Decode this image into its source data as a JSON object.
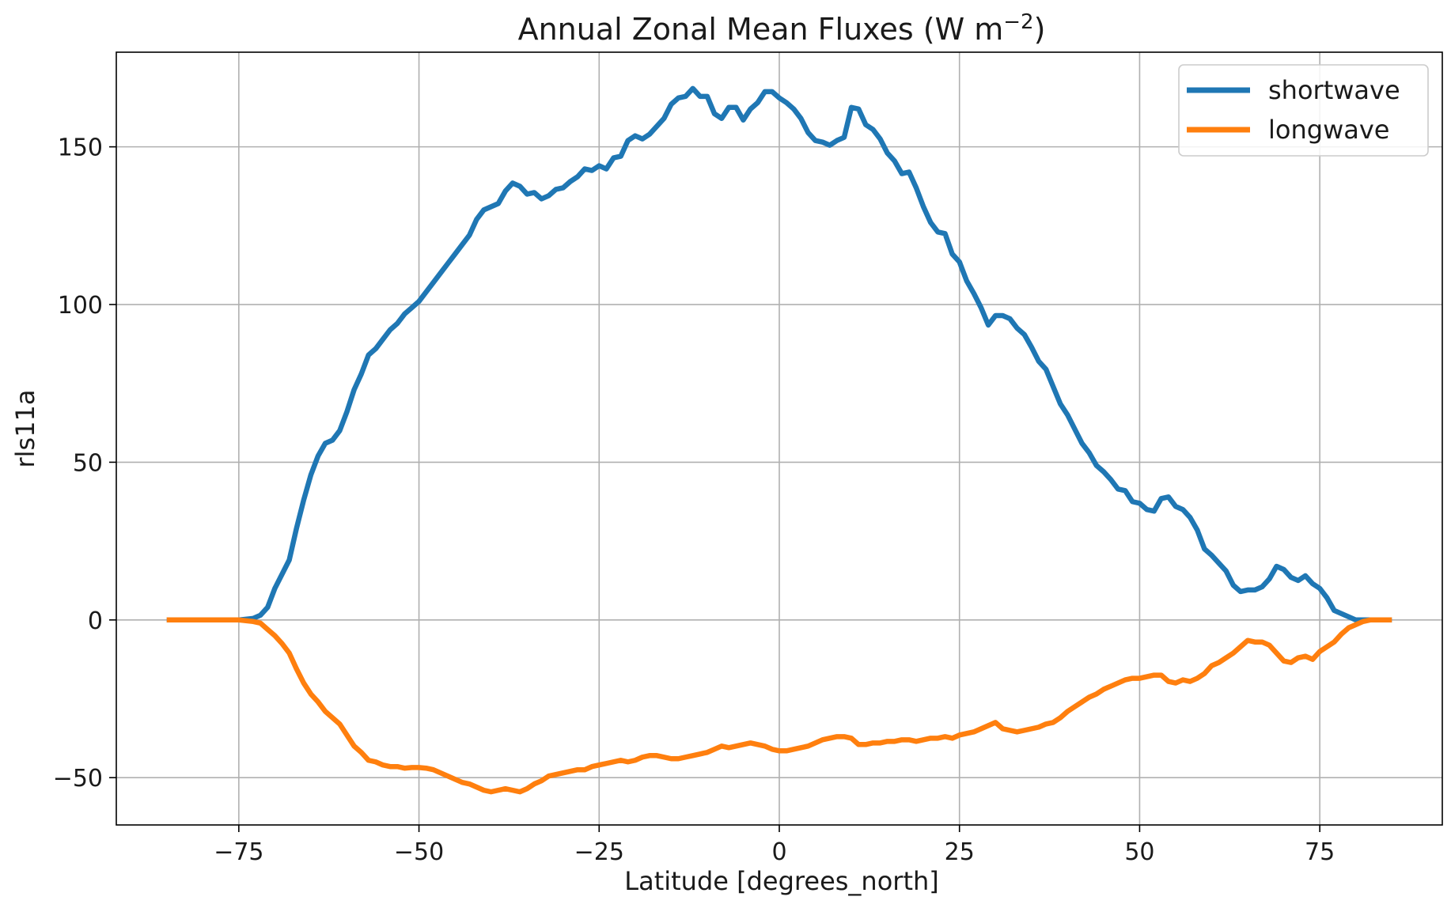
{
  "chart_data": {
    "type": "line",
    "title": "Annual Zonal Mean Fluxes (W m",
    "title_superscript": "−2",
    "title_close": ")",
    "xlabel": "Latitude [degrees_north]",
    "ylabel": "rls11a",
    "xlim": [
      -92,
      92
    ],
    "ylim": [
      -65,
      180
    ],
    "grid": true,
    "legend_position": "top-right",
    "x_ticks": [
      -75,
      -50,
      -25,
      0,
      25,
      50,
      75
    ],
    "x_tick_labels": [
      "−75",
      "−50",
      "−25",
      "0",
      "25",
      "50",
      "75"
    ],
    "y_ticks": [
      -50,
      0,
      50,
      100,
      150
    ],
    "y_tick_labels": [
      "−50",
      "0",
      "50",
      "100",
      "150"
    ],
    "series": [
      {
        "name": "shortwave",
        "color": "#1f77b4",
        "points": [
          [
            -85,
            0
          ],
          [
            -80,
            0
          ],
          [
            -75,
            0
          ],
          [
            -73,
            0.5
          ],
          [
            -72,
            1.5
          ],
          [
            -71,
            4
          ],
          [
            -70,
            10
          ],
          [
            -68,
            19
          ],
          [
            -67,
            29
          ],
          [
            -66,
            38
          ],
          [
            -65,
            46
          ],
          [
            -64,
            52
          ],
          [
            -63,
            56
          ],
          [
            -62,
            57
          ],
          [
            -61,
            60
          ],
          [
            -60,
            66
          ],
          [
            -59,
            73
          ],
          [
            -58,
            78
          ],
          [
            -57,
            84
          ],
          [
            -56,
            86
          ],
          [
            -55,
            89
          ],
          [
            -54,
            92
          ],
          [
            -53,
            94
          ],
          [
            -52,
            97
          ],
          [
            -51,
            99
          ],
          [
            -50,
            101
          ],
          [
            -49,
            104
          ],
          [
            -48,
            107
          ],
          [
            -47,
            110
          ],
          [
            -46,
            113
          ],
          [
            -45,
            116
          ],
          [
            -44,
            119
          ],
          [
            -43,
            122
          ],
          [
            -42,
            127
          ],
          [
            -41,
            130
          ],
          [
            -40,
            131
          ],
          [
            -39,
            132
          ],
          [
            -38,
            136
          ],
          [
            -37,
            138.5
          ],
          [
            -36,
            137.5
          ],
          [
            -35,
            135
          ],
          [
            -34,
            135.5
          ],
          [
            -33,
            133.5
          ],
          [
            -32,
            134.5
          ],
          [
            -31,
            136.5
          ],
          [
            -30,
            137
          ],
          [
            -29,
            139
          ],
          [
            -28,
            140.5
          ],
          [
            -27,
            143
          ],
          [
            -26,
            142.5
          ],
          [
            -25,
            144
          ],
          [
            -24,
            143
          ],
          [
            -23,
            146.5
          ],
          [
            -22,
            147
          ],
          [
            -21,
            152
          ],
          [
            -20,
            153.5
          ],
          [
            -19,
            152.5
          ],
          [
            -18,
            154
          ],
          [
            -17,
            156.5
          ],
          [
            -16,
            159
          ],
          [
            -15,
            163.5
          ],
          [
            -14,
            165.5
          ],
          [
            -13,
            166
          ],
          [
            -12,
            168.5
          ],
          [
            -11,
            166
          ],
          [
            -10,
            166
          ],
          [
            -9,
            160.5
          ],
          [
            -8,
            159
          ],
          [
            -7,
            162.5
          ],
          [
            -6,
            162.5
          ],
          [
            -5,
            158.5
          ],
          [
            -4,
            162
          ],
          [
            -3,
            164
          ],
          [
            -2,
            167.5
          ],
          [
            -1,
            167.5
          ],
          [
            0,
            165.5
          ],
          [
            1,
            164
          ],
          [
            2,
            162
          ],
          [
            3,
            159
          ],
          [
            4,
            154.5
          ],
          [
            5,
            152
          ],
          [
            6,
            151.5
          ],
          [
            7,
            150.5
          ],
          [
            8,
            152
          ],
          [
            9,
            153
          ],
          [
            10,
            162.5
          ],
          [
            11,
            162
          ],
          [
            12,
            157
          ],
          [
            13,
            155.5
          ],
          [
            14,
            152.5
          ],
          [
            15,
            148
          ],
          [
            16,
            145.5
          ],
          [
            17,
            141.5
          ],
          [
            18,
            142
          ],
          [
            19,
            137
          ],
          [
            20,
            131
          ],
          [
            21,
            126
          ],
          [
            22,
            123
          ],
          [
            23,
            122.5
          ],
          [
            24,
            116
          ],
          [
            25,
            113.5
          ],
          [
            26,
            107.5
          ],
          [
            27,
            103.5
          ],
          [
            28,
            99
          ],
          [
            29,
            93.5
          ],
          [
            30,
            96.5
          ],
          [
            31,
            96.5
          ],
          [
            32,
            95.5
          ],
          [
            33,
            92.5
          ],
          [
            34,
            90.5
          ],
          [
            35,
            86.5
          ],
          [
            36,
            82
          ],
          [
            37,
            79.5
          ],
          [
            38,
            74
          ],
          [
            39,
            68.5
          ],
          [
            40,
            65
          ],
          [
            41,
            60.5
          ],
          [
            42,
            56
          ],
          [
            43,
            53
          ],
          [
            44,
            49
          ],
          [
            45,
            47
          ],
          [
            46,
            44.5
          ],
          [
            47,
            41.5
          ],
          [
            48,
            41
          ],
          [
            49,
            37.5
          ],
          [
            50,
            37
          ],
          [
            51,
            35
          ],
          [
            52,
            34.5
          ],
          [
            53,
            38.5
          ],
          [
            54,
            39
          ],
          [
            55,
            36
          ],
          [
            56,
            35
          ],
          [
            57,
            32.5
          ],
          [
            58,
            28.5
          ],
          [
            59,
            22.5
          ],
          [
            60,
            20.5
          ],
          [
            61,
            18
          ],
          [
            62,
            15.5
          ],
          [
            63,
            11
          ],
          [
            64,
            9
          ],
          [
            65,
            9.5
          ],
          [
            66,
            9.5
          ],
          [
            67,
            10.5
          ],
          [
            68,
            13
          ],
          [
            69,
            17
          ],
          [
            70,
            16
          ],
          [
            71,
            13.5
          ],
          [
            72,
            12.5
          ],
          [
            73,
            14
          ],
          [
            74,
            11.5
          ],
          [
            75,
            10
          ],
          [
            76,
            7
          ],
          [
            77,
            3
          ],
          [
            78,
            2
          ],
          [
            79,
            1
          ],
          [
            80,
            0
          ],
          [
            85,
            0
          ]
        ]
      },
      {
        "name": "longwave",
        "color": "#ff7f0e",
        "points": [
          [
            -85,
            0
          ],
          [
            -80,
            0
          ],
          [
            -75,
            0
          ],
          [
            -73,
            -0.5
          ],
          [
            -72,
            -1
          ],
          [
            -71,
            -3
          ],
          [
            -70,
            -5
          ],
          [
            -69,
            -7.5
          ],
          [
            -68,
            -10.5
          ],
          [
            -67,
            -15.5
          ],
          [
            -66,
            -20
          ],
          [
            -65,
            -23.5
          ],
          [
            -64,
            -26
          ],
          [
            -63,
            -29
          ],
          [
            -62,
            -31
          ],
          [
            -61,
            -33
          ],
          [
            -60,
            -36.5
          ],
          [
            -59,
            -40
          ],
          [
            -58,
            -42
          ],
          [
            -57,
            -44.5
          ],
          [
            -56,
            -45
          ],
          [
            -55,
            -46
          ],
          [
            -54,
            -46.5
          ],
          [
            -53,
            -46.5
          ],
          [
            -52,
            -47
          ],
          [
            -51,
            -46.8
          ],
          [
            -50,
            -46.8
          ],
          [
            -49,
            -47
          ],
          [
            -48,
            -47.5
          ],
          [
            -47,
            -48.5
          ],
          [
            -46,
            -49.5
          ],
          [
            -45,
            -50.5
          ],
          [
            -44,
            -51.5
          ],
          [
            -43,
            -52
          ],
          [
            -42,
            -53
          ],
          [
            -41,
            -54
          ],
          [
            -40,
            -54.5
          ],
          [
            -39,
            -54
          ],
          [
            -38,
            -53.5
          ],
          [
            -37,
            -54
          ],
          [
            -36,
            -54.5
          ],
          [
            -35,
            -53.5
          ],
          [
            -34,
            -52
          ],
          [
            -33,
            -51
          ],
          [
            -32,
            -49.5
          ],
          [
            -31,
            -49
          ],
          [
            -30,
            -48.5
          ],
          [
            -29,
            -48
          ],
          [
            -28,
            -47.5
          ],
          [
            -27,
            -47.5
          ],
          [
            -26,
            -46.5
          ],
          [
            -25,
            -46
          ],
          [
            -24,
            -45.5
          ],
          [
            -23,
            -45
          ],
          [
            -22,
            -44.5
          ],
          [
            -21,
            -45
          ],
          [
            -20,
            -44.5
          ],
          [
            -19,
            -43.5
          ],
          [
            -18,
            -43
          ],
          [
            -17,
            -43
          ],
          [
            -16,
            -43.5
          ],
          [
            -15,
            -44
          ],
          [
            -14,
            -44
          ],
          [
            -13,
            -43.5
          ],
          [
            -12,
            -43
          ],
          [
            -11,
            -42.5
          ],
          [
            -10,
            -42
          ],
          [
            -9,
            -41
          ],
          [
            -8,
            -40
          ],
          [
            -7,
            -40.5
          ],
          [
            -6,
            -40
          ],
          [
            -5,
            -39.5
          ],
          [
            -4,
            -39
          ],
          [
            -3,
            -39.5
          ],
          [
            -2,
            -40
          ],
          [
            -1,
            -41
          ],
          [
            0,
            -41.5
          ],
          [
            1,
            -41.5
          ],
          [
            2,
            -41
          ],
          [
            3,
            -40.5
          ],
          [
            4,
            -40
          ],
          [
            5,
            -39
          ],
          [
            6,
            -38
          ],
          [
            7,
            -37.5
          ],
          [
            8,
            -37
          ],
          [
            9,
            -37
          ],
          [
            10,
            -37.5
          ],
          [
            11,
            -39.5
          ],
          [
            12,
            -39.5
          ],
          [
            13,
            -39
          ],
          [
            14,
            -39
          ],
          [
            15,
            -38.5
          ],
          [
            16,
            -38.5
          ],
          [
            17,
            -38
          ],
          [
            18,
            -38
          ],
          [
            19,
            -38.5
          ],
          [
            20,
            -38
          ],
          [
            21,
            -37.5
          ],
          [
            22,
            -37.5
          ],
          [
            23,
            -37
          ],
          [
            24,
            -37.5
          ],
          [
            25,
            -36.5
          ],
          [
            26,
            -36
          ],
          [
            27,
            -35.5
          ],
          [
            28,
            -34.5
          ],
          [
            29,
            -33.5
          ],
          [
            30,
            -32.5
          ],
          [
            31,
            -34.5
          ],
          [
            32,
            -35
          ],
          [
            33,
            -35.5
          ],
          [
            34,
            -35
          ],
          [
            35,
            -34.5
          ],
          [
            36,
            -34
          ],
          [
            37,
            -33
          ],
          [
            38,
            -32.5
          ],
          [
            39,
            -31
          ],
          [
            40,
            -29
          ],
          [
            41,
            -27.5
          ],
          [
            42,
            -26
          ],
          [
            43,
            -24.5
          ],
          [
            44,
            -23.5
          ],
          [
            45,
            -22
          ],
          [
            46,
            -21
          ],
          [
            47,
            -20
          ],
          [
            48,
            -19
          ],
          [
            49,
            -18.5
          ],
          [
            50,
            -18.5
          ],
          [
            51,
            -18
          ],
          [
            52,
            -17.5
          ],
          [
            53,
            -17.5
          ],
          [
            54,
            -19.5
          ],
          [
            55,
            -20
          ],
          [
            56,
            -19
          ],
          [
            57,
            -19.5
          ],
          [
            58,
            -18.5
          ],
          [
            59,
            -17
          ],
          [
            60,
            -14.5
          ],
          [
            61,
            -13.5
          ],
          [
            62,
            -12
          ],
          [
            63,
            -10.5
          ],
          [
            64,
            -8.5
          ],
          [
            65,
            -6.5
          ],
          [
            66,
            -7
          ],
          [
            67,
            -7
          ],
          [
            68,
            -8
          ],
          [
            69,
            -10.5
          ],
          [
            70,
            -13
          ],
          [
            71,
            -13.5
          ],
          [
            72,
            -12
          ],
          [
            73,
            -11.5
          ],
          [
            74,
            -12.5
          ],
          [
            75,
            -10
          ],
          [
            76,
            -8.5
          ],
          [
            77,
            -7
          ],
          [
            78,
            -4.5
          ],
          [
            79,
            -2.5
          ],
          [
            80,
            -1.5
          ],
          [
            81,
            -0.5
          ],
          [
            82,
            0
          ],
          [
            85,
            0
          ]
        ]
      }
    ]
  }
}
